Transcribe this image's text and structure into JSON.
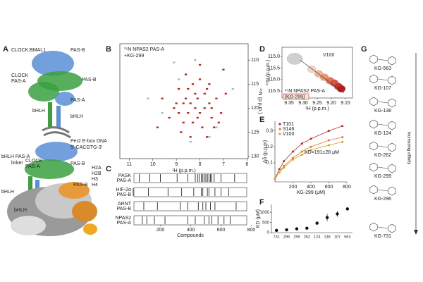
{
  "figure": {
    "panel_letters": [
      "A",
      "B",
      "C",
      "D",
      "E",
      "F",
      "G"
    ],
    "panel_a": {
      "labels": [
        "CLOCK:BMAL1",
        "PAS-B",
        "CLOCK",
        "PAS-A",
        "PAS-B",
        "PAS-A",
        "bHLH",
        "bHLH",
        "Per2 E-box DNA",
        "5′-CACGTG-3′",
        "bHLH PAS-A",
        "linker",
        "CLOCK",
        "PAS-A",
        "PAS-B",
        "bHLH",
        "PAS-B",
        "bHLH"
      ],
      "histones": [
        "H2A",
        "H2B",
        "H3",
        "H4"
      ]
    },
    "panel_g": {
      "compounds": [
        "KG-563",
        "KG-107",
        "KG-138",
        "KG-124",
        "KG-262",
        "KG-299",
        "KG-296",
        "KG-731"
      ],
      "arrow_label": "Increasing affinity"
    }
  },
  "chart_data": [
    {
      "type": "scatter",
      "xlabel": "¹H (p.p.m.)",
      "ylabel": "¹⁵N (p.p.m.)",
      "xlim": [
        11.4,
        5.95
      ],
      "ylim": [
        130.5,
        106.6
      ],
      "xticks": [
        11,
        10,
        9,
        8,
        7,
        6
      ],
      "yticks": [
        110,
        115,
        120,
        125,
        130
      ],
      "series": [
        {
          "name": "¹⁵N NPAS2 PAS-A",
          "color": "#9fb8e0",
          "x": [
            9.6,
            8.2,
            7.0,
            10.2,
            8.9,
            7.6,
            6.6,
            9.1,
            8.4,
            7.3
          ],
          "values": [
            121,
            110,
            112,
            118,
            114,
            126,
            116,
            110.5,
            127,
            124
          ]
        },
        {
          "name": "+KG-299",
          "color": "#c0281c",
          "x": [
            8.6,
            8.4,
            8.2,
            8.0,
            7.8,
            7.6,
            7.5,
            8.9,
            9.1,
            8.3,
            8.1,
            7.9,
            7.7,
            8.5,
            8.7,
            7.3,
            7.1,
            9.3,
            8.8,
            8.0,
            7.6,
            7.4,
            8.2,
            8.6,
            9.0,
            7.8,
            8.4,
            9.6,
            7.0,
            6.9,
            8.1,
            7.7,
            8.3,
            8.9,
            7.5,
            9.8,
            8.0,
            7.2,
            8.5,
            8.7
          ],
          "values": [
            118,
            119,
            120,
            121,
            117,
            119,
            122,
            116,
            120,
            123,
            118,
            124,
            116,
            121,
            119,
            118,
            121,
            122,
            125,
            114,
            115,
            124,
            117,
            113,
            119,
            120,
            126,
            118,
            112,
            117,
            122,
            126,
            115,
            121,
            120,
            124,
            111,
            123,
            116,
            123
          ]
        }
      ]
    },
    {
      "type": "event",
      "xlabel": "Compounds",
      "xlim": [
        25,
        770
      ],
      "xticks": [
        200,
        400,
        600,
        800
      ],
      "series": [
        {
          "label": [
            "PASK",
            "PAS-A"
          ],
          "values": [
            60,
            130,
            200,
            310,
            380,
            430,
            445,
            455,
            470,
            480,
            490,
            500,
            510,
            520,
            530,
            540,
            555,
            600,
            690
          ]
        },
        {
          "label": [
            "HIF-2α",
            "PAS-B"
          ],
          "values": [
            20,
            120,
            250,
            340,
            420,
            470,
            480,
            510,
            520,
            560,
            600,
            650
          ]
        },
        {
          "label": [
            "ARNT",
            "PAS-B"
          ],
          "values": [
            90,
            180,
            330,
            380,
            450,
            480,
            500,
            530,
            560,
            700
          ]
        },
        {
          "label": [
            "NPAS2",
            "PAS-A"
          ],
          "values": [
            80,
            110,
            160,
            230,
            380,
            430,
            490,
            520,
            540,
            580,
            620,
            660
          ]
        }
      ]
    },
    {
      "type": "peaks",
      "xlabel": "¹H (p.p.m.)",
      "ylabel": "¹⁵N (p.p.m.)",
      "annotation": "V100",
      "legend": [
        "¹⁵N NPAS2 PAS-A",
        "[KG-299]"
      ],
      "xlim": [
        9.375,
        9.125
      ],
      "ylim": [
        114.6,
        116.8
      ],
      "xticks": [
        9.35,
        9.3,
        9.25,
        9.2,
        9.15
      ],
      "yticks": [
        {
          "value": 115,
          "label": "115.0"
        },
        115.5,
        {
          "value": 116,
          "label": "116.0"
        },
        116.5
      ],
      "xtick_labels": [
        "9.35",
        "9.30",
        "9.25",
        "9.20",
        "9.15"
      ],
      "x": [
        9.33,
        9.27,
        9.245,
        9.225,
        9.205,
        9.19,
        9.175,
        9.165
      ],
      "values": [
        115.1,
        115.55,
        115.75,
        115.9,
        116.05,
        116.15,
        116.3,
        116.4
      ],
      "colors": [
        "#cfcfcf",
        "#f6d2bf",
        "#f2b496",
        "#ec9672",
        "#e57452",
        "#d9523a",
        "#c93428",
        "#b51c1c"
      ]
    },
    {
      "type": "line",
      "xlabel": "KG-299 (μM)",
      "ylabel": "Δδ (p.p.m)",
      "annotation": "KD=191±28 μM",
      "xlim": [
        0,
        800
      ],
      "ylim": [
        -0.02,
        0.36
      ],
      "xticks": [
        200,
        400,
        600,
        800
      ],
      "yticks": [
        0.1,
        0.2,
        0.3
      ],
      "x": [
        0,
        50,
        100,
        200,
        300,
        400,
        600,
        750
      ],
      "series": [
        {
          "name": "T101",
          "color": "#c0281c",
          "values": [
            0,
            0.06,
            0.11,
            0.17,
            0.22,
            0.25,
            0.3,
            0.33
          ]
        },
        {
          "name": "S146",
          "color": "#e8792a",
          "values": [
            0,
            0.04,
            0.08,
            0.13,
            0.17,
            0.2,
            0.24,
            0.26
          ]
        },
        {
          "name": "V100",
          "color": "#d9a520",
          "values": [
            0,
            0.04,
            0.07,
            0.12,
            0.15,
            0.18,
            0.21,
            0.23
          ]
        }
      ]
    },
    {
      "type": "errorbar",
      "ylabel": "KD (μM)",
      "ylim": [
        0,
        1400
      ],
      "yticks": [
        0,
        500,
        1000
      ],
      "categories": [
        "731",
        "296",
        "299",
        "262",
        "124",
        "138",
        "107",
        "563"
      ],
      "values": [
        110,
        140,
        190,
        220,
        470,
        750,
        930,
        1180
      ],
      "errors": [
        30,
        30,
        30,
        30,
        80,
        180,
        140,
        90
      ]
    }
  ]
}
